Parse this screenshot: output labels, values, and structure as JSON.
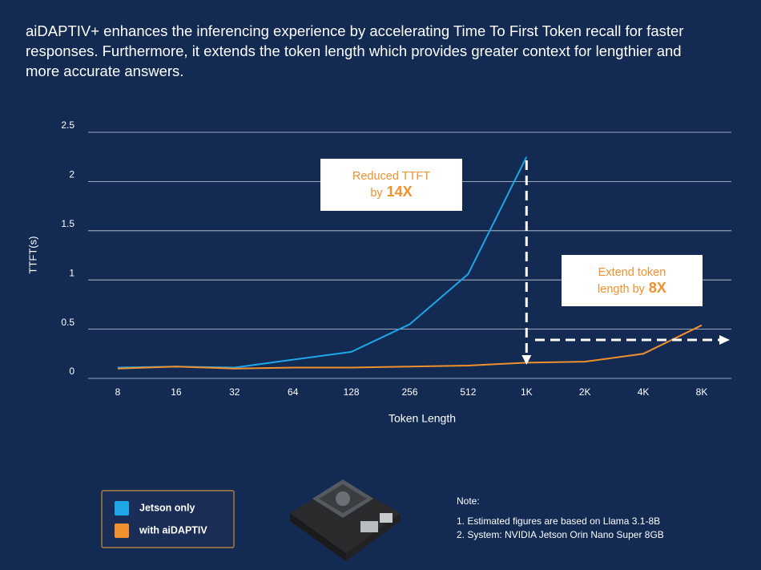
{
  "header": {
    "lines": [
      "aiDAPTIV+ enhances the inferencing experience by accelerating Time To First Token recall for faster",
      "responses. Furthermore, it extends the token length which provides greater context for lengthier and",
      "more accurate answers."
    ]
  },
  "chart_data": {
    "type": "line",
    "y_label": "TTFT(s)",
    "x_label": "Token Length",
    "categories": [
      "8",
      "16",
      "32",
      "64",
      "128",
      "256",
      "512",
      "1K",
      "2K",
      "4K",
      "8K"
    ],
    "series": [
      {
        "name": "Jetson only",
        "color": "#1ea7e8",
        "values": [
          0.11,
          0.12,
          0.11,
          0.19,
          0.27,
          0.55,
          1.06,
          2.25,
          null,
          null,
          null
        ]
      },
      {
        "name": "with aiDAPTIV",
        "color": "#f0912e",
        "values": [
          0.1,
          0.12,
          0.1,
          0.11,
          0.11,
          0.12,
          0.13,
          0.16,
          0.17,
          0.25,
          0.54
        ]
      }
    ],
    "ylim": [
      0,
      2.5
    ],
    "yticks": [
      0,
      0.5,
      1,
      1.5,
      2,
      2.5
    ],
    "grid": true,
    "annotations": [
      {
        "line1": "Reduced TTFT",
        "line2": "by",
        "emphasis": "14X"
      },
      {
        "line1": "Extend token",
        "line2": "length by",
        "emphasis": "8X"
      }
    ]
  },
  "notes": {
    "title": "Note:",
    "items": [
      "1. Estimated figures are based on Llama 3.1-8B",
      "2. System: NVIDIA Jetson Orin Nano Super 8GB"
    ]
  }
}
